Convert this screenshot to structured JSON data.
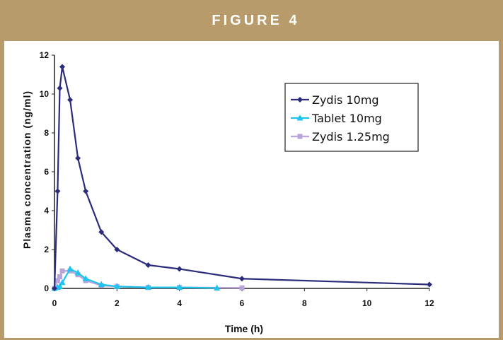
{
  "figure": {
    "title": "FIGURE 4"
  },
  "chart_data": {
    "type": "line",
    "title": "",
    "xlabel": "Time (h)",
    "ylabel": "Plasma concentration (ng/ml)",
    "xlim": [
      0,
      12
    ],
    "ylim": [
      0,
      12
    ],
    "x_ticks": [
      "0",
      "2",
      "4",
      "6",
      "8",
      "10",
      "12"
    ],
    "y_ticks": [
      "0",
      "2",
      "4",
      "6",
      "8",
      "10",
      "12"
    ],
    "grid": false,
    "legend_position": "top-right",
    "series": [
      {
        "name": "Zydis 10mg",
        "color": "#2b2d7c",
        "marker": "diamond",
        "x": [
          0,
          0.1,
          0.17,
          0.25,
          0.5,
          0.75,
          1,
          1.5,
          2,
          3,
          4,
          6,
          12
        ],
        "y": [
          0,
          5.0,
          10.3,
          11.4,
          9.7,
          6.7,
          5.0,
          2.9,
          2.0,
          1.2,
          1.0,
          0.5,
          0.2
        ]
      },
      {
        "name": "Tablet 10mg",
        "color": "#1ec3ee",
        "marker": "triangle",
        "x": [
          0,
          0.1,
          0.17,
          0.25,
          0.5,
          0.75,
          1,
          1.5,
          2,
          3,
          4,
          5.2
        ],
        "y": [
          0,
          0.05,
          0.1,
          0.3,
          1.0,
          0.8,
          0.5,
          0.2,
          0.1,
          0.05,
          0.05,
          0.02
        ]
      },
      {
        "name": "Zydis 1.25mg",
        "color": "#b9a3d8",
        "marker": "square",
        "x": [
          0,
          0.1,
          0.17,
          0.25,
          0.5,
          0.75,
          1,
          1.5,
          2,
          3,
          4,
          6
        ],
        "y": [
          0,
          0.4,
          0.6,
          0.9,
          0.9,
          0.7,
          0.4,
          0.15,
          0.1,
          0.05,
          0.05,
          0.03
        ]
      }
    ]
  }
}
